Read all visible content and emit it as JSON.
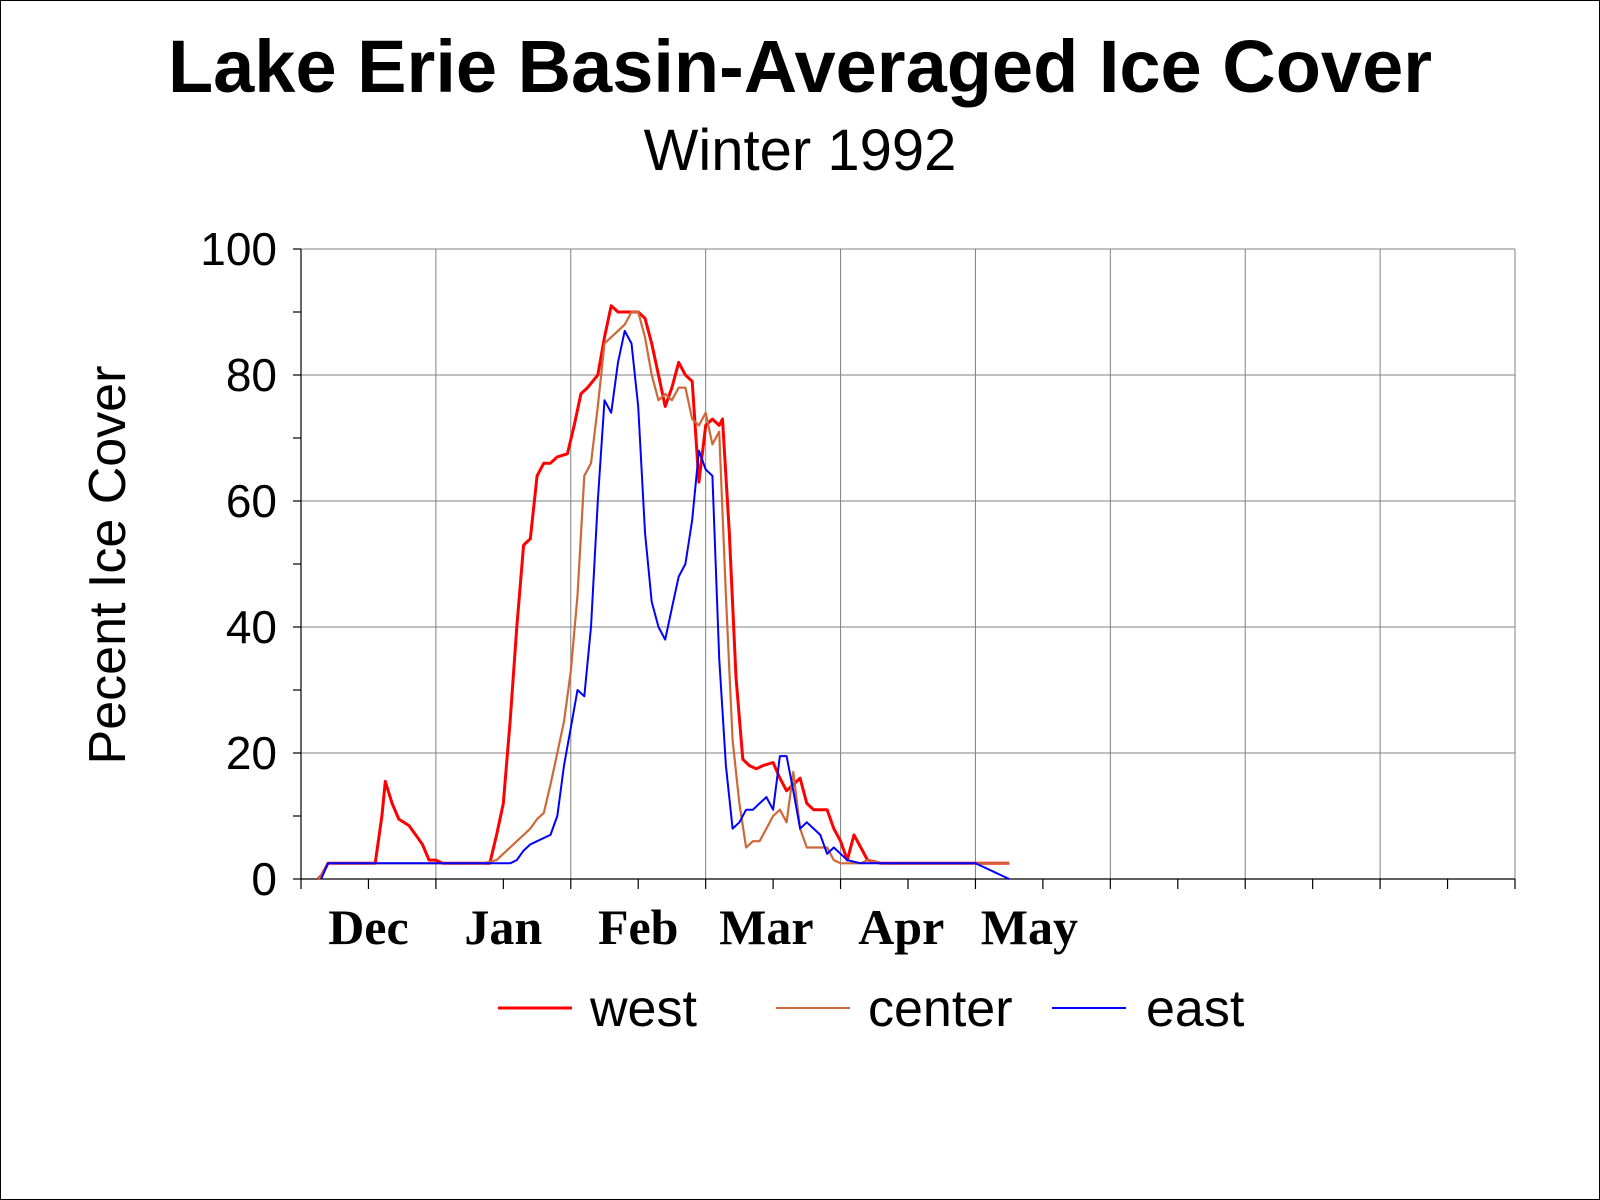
{
  "chart_data": {
    "type": "line",
    "title": "Lake Erie Basin-Averaged Ice Cover",
    "subtitle": "Winter 1992",
    "ylabel": "Pecent Ice Cover",
    "xlabel": "",
    "ylim": [
      0,
      100
    ],
    "yticks": [
      "0",
      "20",
      "40",
      "60",
      "80",
      "100"
    ],
    "x_domain": [
      0,
      180
    ],
    "month_labels": [
      {
        "label": "Dec",
        "x": 10
      },
      {
        "label": "Jan",
        "x": 30
      },
      {
        "label": "Feb",
        "x": 50
      },
      {
        "label": "Mar",
        "x": 69
      },
      {
        "label": "Apr",
        "x": 89
      },
      {
        "label": "May",
        "x": 108
      }
    ],
    "grid": true,
    "legend_position": "bottom",
    "series": [
      {
        "name": "west",
        "color": "#ff0000",
        "points": [
          [
            2.5,
            0
          ],
          [
            3,
            0.5
          ],
          [
            4,
            2.5
          ],
          [
            11,
            2.5
          ],
          [
            12,
            10
          ],
          [
            12.5,
            15.5
          ],
          [
            13.5,
            12
          ],
          [
            14.5,
            9.5
          ],
          [
            16,
            8.5
          ],
          [
            17,
            7
          ],
          [
            18,
            5.5
          ],
          [
            19,
            3
          ],
          [
            20,
            3
          ],
          [
            21,
            2.5
          ],
          [
            28,
            2.5
          ],
          [
            29,
            7
          ],
          [
            30,
            12
          ],
          [
            31,
            25
          ],
          [
            32,
            40
          ],
          [
            33,
            53
          ],
          [
            34,
            54
          ],
          [
            35,
            64
          ],
          [
            36,
            66
          ],
          [
            37,
            66
          ],
          [
            38,
            67
          ],
          [
            39.5,
            67.5
          ],
          [
            40.5,
            72
          ],
          [
            41.5,
            77
          ],
          [
            42.5,
            78
          ],
          [
            44,
            80
          ],
          [
            45,
            86
          ],
          [
            46,
            91
          ],
          [
            47,
            90
          ],
          [
            48,
            90
          ],
          [
            49,
            90
          ],
          [
            50,
            90
          ],
          [
            51,
            89
          ],
          [
            52,
            85
          ],
          [
            53,
            80
          ],
          [
            54,
            75
          ],
          [
            55,
            78
          ],
          [
            56,
            82
          ],
          [
            57,
            80
          ],
          [
            58,
            79
          ],
          [
            59,
            63
          ],
          [
            60,
            72
          ],
          [
            61,
            73
          ],
          [
            62,
            72
          ],
          [
            62.5,
            73
          ],
          [
            63.5,
            55
          ],
          [
            64.5,
            32
          ],
          [
            65.5,
            19
          ],
          [
            66.5,
            18
          ],
          [
            67.5,
            17.5
          ],
          [
            68.5,
            18
          ],
          [
            70,
            18.5
          ],
          [
            71,
            16
          ],
          [
            72,
            14
          ],
          [
            73,
            15
          ],
          [
            74,
            16
          ],
          [
            75,
            12
          ],
          [
            76,
            11
          ],
          [
            77,
            11
          ],
          [
            78,
            11
          ],
          [
            79,
            8
          ],
          [
            80,
            6
          ],
          [
            81,
            3
          ],
          [
            82,
            7
          ],
          [
            83,
            5
          ],
          [
            84,
            3
          ],
          [
            86,
            2.5
          ],
          [
            105,
            2.5
          ]
        ]
      },
      {
        "name": "center",
        "color": "#cd6839",
        "points": [
          [
            2.5,
            0
          ],
          [
            3,
            0.5
          ],
          [
            4,
            2.5
          ],
          [
            27,
            2.5
          ],
          [
            29,
            3
          ],
          [
            30,
            4
          ],
          [
            31,
            5
          ],
          [
            32,
            6
          ],
          [
            33,
            7
          ],
          [
            34,
            8
          ],
          [
            35,
            9.5
          ],
          [
            36,
            10.5
          ],
          [
            37,
            15
          ],
          [
            38,
            20
          ],
          [
            39,
            25
          ],
          [
            40,
            33
          ],
          [
            41,
            45
          ],
          [
            42,
            64
          ],
          [
            43,
            66
          ],
          [
            44,
            75
          ],
          [
            45,
            85
          ],
          [
            46,
            86
          ],
          [
            47,
            87
          ],
          [
            48,
            88
          ],
          [
            49,
            90
          ],
          [
            50,
            90
          ],
          [
            51,
            86
          ],
          [
            52,
            80
          ],
          [
            53,
            76
          ],
          [
            54,
            77
          ],
          [
            55,
            76
          ],
          [
            56,
            78
          ],
          [
            57,
            78
          ],
          [
            58,
            73
          ],
          [
            59,
            72
          ],
          [
            60,
            74
          ],
          [
            61,
            69
          ],
          [
            62,
            71
          ],
          [
            63,
            45
          ],
          [
            64,
            22
          ],
          [
            65,
            12
          ],
          [
            66,
            5
          ],
          [
            67,
            6
          ],
          [
            68,
            6
          ],
          [
            69,
            8
          ],
          [
            70,
            10
          ],
          [
            71,
            11
          ],
          [
            72,
            9
          ],
          [
            73,
            17
          ],
          [
            74,
            8
          ],
          [
            75,
            5
          ],
          [
            76,
            5
          ],
          [
            77,
            5
          ],
          [
            78,
            5
          ],
          [
            79,
            3
          ],
          [
            80,
            2.5
          ],
          [
            83,
            2.5
          ],
          [
            84,
            3
          ],
          [
            86,
            2.5
          ],
          [
            105,
            2.5
          ]
        ]
      },
      {
        "name": "east",
        "color": "#0000ff",
        "points": [
          [
            3,
            0
          ],
          [
            4,
            2.5
          ],
          [
            31,
            2.5
          ],
          [
            32,
            3
          ],
          [
            33,
            4.5
          ],
          [
            34,
            5.5
          ],
          [
            35,
            6
          ],
          [
            36,
            6.5
          ],
          [
            37,
            7
          ],
          [
            38,
            10
          ],
          [
            39,
            18
          ],
          [
            40,
            24
          ],
          [
            41,
            30
          ],
          [
            42,
            29
          ],
          [
            43,
            40
          ],
          [
            44,
            60
          ],
          [
            45,
            76
          ],
          [
            46,
            74
          ],
          [
            47,
            82
          ],
          [
            48,
            87
          ],
          [
            49,
            85
          ],
          [
            50,
            75
          ],
          [
            51,
            55
          ],
          [
            52,
            44
          ],
          [
            53,
            40
          ],
          [
            54,
            38
          ],
          [
            55,
            43
          ],
          [
            56,
            48
          ],
          [
            57,
            50
          ],
          [
            58,
            57
          ],
          [
            59,
            68
          ],
          [
            60,
            65
          ],
          [
            61,
            64
          ],
          [
            62,
            35
          ],
          [
            63,
            18
          ],
          [
            64,
            8
          ],
          [
            65,
            9
          ],
          [
            66,
            11
          ],
          [
            67,
            11
          ],
          [
            68,
            12
          ],
          [
            69,
            13
          ],
          [
            70,
            11
          ],
          [
            71,
            19.5
          ],
          [
            72,
            19.5
          ],
          [
            73,
            14
          ],
          [
            74,
            8
          ],
          [
            75,
            9
          ],
          [
            76,
            8
          ],
          [
            77,
            7
          ],
          [
            78,
            4
          ],
          [
            79,
            5
          ],
          [
            80,
            4
          ],
          [
            81,
            3
          ],
          [
            83,
            2.5
          ],
          [
            86,
            2.5
          ],
          [
            100,
            2.5
          ],
          [
            101,
            2
          ],
          [
            102,
            1.5
          ],
          [
            103,
            1
          ],
          [
            104,
            0.5
          ],
          [
            105,
            0
          ]
        ]
      }
    ]
  }
}
